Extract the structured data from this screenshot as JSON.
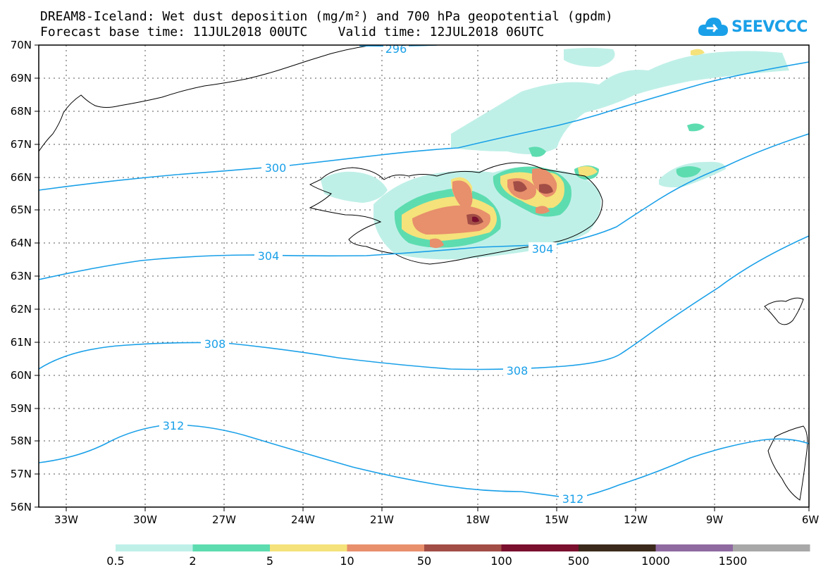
{
  "title": {
    "line1": "DREAM8-Iceland: Wet dust deposition (mg/m²) and 700 hPa geopotential (gpdm)",
    "line2": "Forecast base time: 11JUL2018 00UTC    Valid time: 12JUL2018 06UTC"
  },
  "logo": {
    "text": "SEEVCCC",
    "icon": "cloud-arrow-icon",
    "color": "#1aa0e8"
  },
  "axes": {
    "lat_labels": [
      "70N",
      "69N",
      "68N",
      "67N",
      "66N",
      "65N",
      "64N",
      "63N",
      "62N",
      "61N",
      "60N",
      "59N",
      "58N",
      "57N",
      "56N"
    ],
    "lon_labels": [
      "33W",
      "30W",
      "27W",
      "24W",
      "21W",
      "18W",
      "15W",
      "12W",
      "9W",
      "6W"
    ]
  },
  "contours": {
    "color": "#1aa0e8",
    "labels": [
      "296",
      "300",
      "304",
      "304",
      "308",
      "308",
      "312",
      "312"
    ]
  },
  "legend": {
    "labels": [
      "0.5",
      "2",
      "5",
      "10",
      "50",
      "100",
      "500",
      "1000",
      "1500"
    ],
    "colors": [
      "#bff0e8",
      "#5ddcb0",
      "#f5e27a",
      "#e88f6c",
      "#a24e46",
      "#7a0f2e",
      "#3b2a1c",
      "#8f6aa1",
      "#a8a8a8"
    ]
  }
}
